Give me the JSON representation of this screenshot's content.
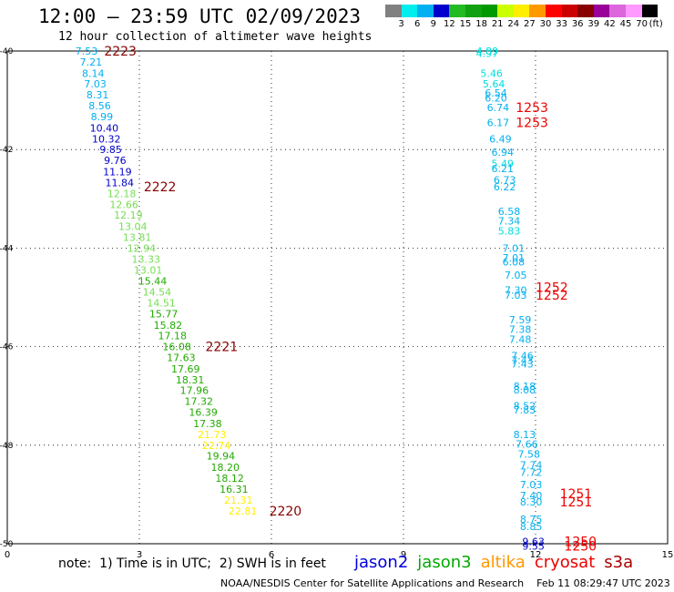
{
  "title": "12:00 – 23:59 UTC 02/09/2023",
  "subtitle": "12 hour collection of altimeter wave heights",
  "color_legend": {
    "unit": "(ft)",
    "labels": [
      "3",
      "6",
      "9",
      "12",
      "15",
      "18",
      "21",
      "24",
      "27",
      "30",
      "33",
      "36",
      "39",
      "42",
      "45",
      "70"
    ],
    "colors": [
      "#808080",
      "#00eeee",
      "#00b0f0",
      "#0000cc",
      "#22bb22",
      "#11a011",
      "#009900",
      "#ccff00",
      "#ffee00",
      "#ff9900",
      "#ff0000",
      "#cc0000",
      "#880000",
      "#990099",
      "#dd66dd",
      "#ff99ff",
      "#000000"
    ]
  },
  "note": "note:  1) Time is in UTC;  2) SWH is in feet",
  "satellites": [
    {
      "name": "jason2",
      "color": "#0000dd"
    },
    {
      "name": "jason3",
      "color": "#00aa00"
    },
    {
      "name": "altika",
      "color": "#ff9900"
    },
    {
      "name": "cryosat",
      "color": "#ee0000"
    },
    {
      "name": "s3a",
      "color": "#aa0000"
    }
  ],
  "footer": "NOAA/NESDIS Center for Satellite Applications and Research    Feb 11 08:29:47 UTC 2023",
  "chart_data": {
    "type": "scatter",
    "xlabel": "",
    "ylabel": "",
    "x_ticks": [
      "0",
      "3",
      "6",
      "9",
      "12",
      "15"
    ],
    "y_ticks": [
      "-40",
      "-42",
      "-44",
      "-46",
      "-48",
      "-50"
    ],
    "xlim": [
      0,
      15
    ],
    "ylim": [
      -50,
      -40
    ],
    "grid": true,
    "value_labels": [
      {
        "x": 1.8,
        "y": -40.0,
        "text": "7.53",
        "color": "#00b0f0"
      },
      {
        "x": 1.9,
        "y": -40.22,
        "text": "7.21",
        "color": "#00b0f0"
      },
      {
        "x": 1.95,
        "y": -40.45,
        "text": "8.14",
        "color": "#00b0f0"
      },
      {
        "x": 2.0,
        "y": -40.67,
        "text": "7.03",
        "color": "#00b0f0"
      },
      {
        "x": 2.05,
        "y": -40.89,
        "text": "8.31",
        "color": "#00b0f0"
      },
      {
        "x": 2.1,
        "y": -41.11,
        "text": "8.56",
        "color": "#00b0f0"
      },
      {
        "x": 2.15,
        "y": -41.33,
        "text": "8.99",
        "color": "#00b0f0"
      },
      {
        "x": 2.2,
        "y": -41.56,
        "text": "10.40",
        "color": "#0000cc"
      },
      {
        "x": 2.25,
        "y": -41.78,
        "text": "10.32",
        "color": "#0000cc"
      },
      {
        "x": 2.35,
        "y": -42.0,
        "text": "9.85",
        "color": "#0000cc"
      },
      {
        "x": 2.45,
        "y": -42.22,
        "text": "9.76",
        "color": "#0000cc"
      },
      {
        "x": 2.5,
        "y": -42.45,
        "text": "11.19",
        "color": "#0000cc"
      },
      {
        "x": 2.55,
        "y": -42.67,
        "text": "11.84",
        "color": "#0000cc"
      },
      {
        "x": 2.6,
        "y": -42.89,
        "text": "12.18",
        "color": "#77dd55"
      },
      {
        "x": 2.65,
        "y": -43.11,
        "text": "12.66",
        "color": "#77dd55"
      },
      {
        "x": 2.75,
        "y": -43.33,
        "text": "12.19",
        "color": "#77dd55"
      },
      {
        "x": 2.85,
        "y": -43.56,
        "text": "13.04",
        "color": "#77dd55"
      },
      {
        "x": 2.95,
        "y": -43.78,
        "text": "13.81",
        "color": "#77dd55"
      },
      {
        "x": 3.05,
        "y": -44.0,
        "text": "12.94",
        "color": "#77dd55"
      },
      {
        "x": 3.15,
        "y": -44.22,
        "text": "13.33",
        "color": "#77dd55"
      },
      {
        "x": 3.2,
        "y": -44.45,
        "text": "13.01",
        "color": "#77dd55"
      },
      {
        "x": 3.3,
        "y": -44.67,
        "text": "15.44",
        "color": "#22aa00"
      },
      {
        "x": 3.4,
        "y": -44.89,
        "text": "14.54",
        "color": "#77dd55"
      },
      {
        "x": 3.5,
        "y": -45.11,
        "text": "14.51",
        "color": "#77dd55"
      },
      {
        "x": 3.55,
        "y": -45.33,
        "text": "15.77",
        "color": "#22aa00"
      },
      {
        "x": 3.65,
        "y": -45.56,
        "text": "15.82",
        "color": "#22aa00"
      },
      {
        "x": 3.75,
        "y": -45.78,
        "text": "17.18",
        "color": "#22aa00"
      },
      {
        "x": 3.85,
        "y": -46.0,
        "text": "16.08",
        "color": "#22aa00"
      },
      {
        "x": 3.95,
        "y": -46.22,
        "text": "17.63",
        "color": "#22aa00"
      },
      {
        "x": 4.05,
        "y": -46.45,
        "text": "17.69",
        "color": "#22aa00"
      },
      {
        "x": 4.15,
        "y": -46.67,
        "text": "18.31",
        "color": "#22aa00"
      },
      {
        "x": 4.25,
        "y": -46.89,
        "text": "17.96",
        "color": "#22aa00"
      },
      {
        "x": 4.35,
        "y": -47.11,
        "text": "17.32",
        "color": "#22aa00"
      },
      {
        "x": 4.45,
        "y": -47.33,
        "text": "16.39",
        "color": "#22aa00"
      },
      {
        "x": 4.55,
        "y": -47.56,
        "text": "17.38",
        "color": "#22aa00"
      },
      {
        "x": 4.65,
        "y": -47.78,
        "text": "21.73",
        "color": "#ffee00"
      },
      {
        "x": 4.75,
        "y": -48.0,
        "text": "22.74",
        "color": "#ffee00"
      },
      {
        "x": 4.85,
        "y": -48.22,
        "text": "19.94",
        "color": "#22aa00"
      },
      {
        "x": 4.95,
        "y": -48.45,
        "text": "18.20",
        "color": "#22aa00"
      },
      {
        "x": 5.05,
        "y": -48.67,
        "text": "18.12",
        "color": "#22aa00"
      },
      {
        "x": 5.15,
        "y": -48.89,
        "text": "16.31",
        "color": "#22aa00"
      },
      {
        "x": 5.25,
        "y": -49.11,
        "text": "21.31",
        "color": "#ffee00"
      },
      {
        "x": 5.35,
        "y": -49.33,
        "text": "22.81",
        "color": "#ffee00"
      },
      {
        "x": 10.9,
        "y": -40.0,
        "text": "4.89",
        "color": "#00dddd"
      },
      {
        "x": 10.9,
        "y": -40.05,
        "text": "4.97",
        "color": "#00dddd"
      },
      {
        "x": 11.0,
        "y": -40.45,
        "text": "5.46",
        "color": "#00dddd"
      },
      {
        "x": 11.05,
        "y": -40.67,
        "text": "5.64",
        "color": "#00dddd"
      },
      {
        "x": 11.1,
        "y": -40.85,
        "text": "6.54",
        "color": "#00b0f0"
      },
      {
        "x": 11.1,
        "y": -40.95,
        "text": "6.20",
        "color": "#00b0f0"
      },
      {
        "x": 11.15,
        "y": -41.15,
        "text": "6.74",
        "color": "#00b0f0"
      },
      {
        "x": 11.15,
        "y": -41.45,
        "text": "6.17",
        "color": "#00b0f0"
      },
      {
        "x": 11.2,
        "y": -41.78,
        "text": "6.49",
        "color": "#00b0f0"
      },
      {
        "x": 11.25,
        "y": -42.05,
        "text": "6.94",
        "color": "#00b0f0"
      },
      {
        "x": 11.25,
        "y": -42.28,
        "text": "5.49",
        "color": "#00dddd"
      },
      {
        "x": 11.25,
        "y": -42.38,
        "text": "6.21",
        "color": "#00b0f0"
      },
      {
        "x": 11.3,
        "y": -42.62,
        "text": "6.73",
        "color": "#00b0f0"
      },
      {
        "x": 11.3,
        "y": -42.75,
        "text": "6.22",
        "color": "#00b0f0"
      },
      {
        "x": 11.4,
        "y": -43.25,
        "text": "6.58",
        "color": "#00b0f0"
      },
      {
        "x": 11.4,
        "y": -43.45,
        "text": "7.34",
        "color": "#00b0f0"
      },
      {
        "x": 11.4,
        "y": -43.65,
        "text": "5.83",
        "color": "#00dddd"
      },
      {
        "x": 11.5,
        "y": -44.0,
        "text": "7.01",
        "color": "#00b0f0"
      },
      {
        "x": 11.5,
        "y": -44.2,
        "text": "7.01",
        "color": "#00b0f0"
      },
      {
        "x": 11.5,
        "y": -44.28,
        "text": "6.08",
        "color": "#00b0f0"
      },
      {
        "x": 11.55,
        "y": -44.55,
        "text": "7.05",
        "color": "#00b0f0"
      },
      {
        "x": 11.55,
        "y": -44.85,
        "text": "7.30",
        "color": "#00b0f0"
      },
      {
        "x": 11.55,
        "y": -44.95,
        "text": "7.03",
        "color": "#00b0f0"
      },
      {
        "x": 11.65,
        "y": -45.45,
        "text": "7.59",
        "color": "#00b0f0"
      },
      {
        "x": 11.65,
        "y": -45.65,
        "text": "7.38",
        "color": "#00b0f0"
      },
      {
        "x": 11.65,
        "y": -45.85,
        "text": "7.48",
        "color": "#00b0f0"
      },
      {
        "x": 11.7,
        "y": -46.18,
        "text": "7.46",
        "color": "#00b0f0"
      },
      {
        "x": 11.7,
        "y": -46.28,
        "text": "7.43",
        "color": "#00b0f0"
      },
      {
        "x": 11.7,
        "y": -46.35,
        "text": "7.43",
        "color": "#00b0f0"
      },
      {
        "x": 11.75,
        "y": -46.8,
        "text": "8.18",
        "color": "#00b0f0"
      },
      {
        "x": 11.75,
        "y": -46.88,
        "text": "8.08",
        "color": "#00b0f0"
      },
      {
        "x": 11.75,
        "y": -47.2,
        "text": "8.52",
        "color": "#00b0f0"
      },
      {
        "x": 11.75,
        "y": -47.28,
        "text": "7.83",
        "color": "#00b0f0"
      },
      {
        "x": 11.75,
        "y": -47.78,
        "text": "8.13",
        "color": "#00b0f0"
      },
      {
        "x": 11.8,
        "y": -47.98,
        "text": "7.66",
        "color": "#00b0f0"
      },
      {
        "x": 11.85,
        "y": -48.18,
        "text": "7.58",
        "color": "#00b0f0"
      },
      {
        "x": 11.9,
        "y": -48.4,
        "text": "7.74",
        "color": "#00b0f0"
      },
      {
        "x": 11.9,
        "y": -48.55,
        "text": "7.72",
        "color": "#00b0f0"
      },
      {
        "x": 11.9,
        "y": -48.8,
        "text": "7.03",
        "color": "#00b0f0"
      },
      {
        "x": 11.9,
        "y": -49.02,
        "text": "7.40",
        "color": "#00b0f0"
      },
      {
        "x": 11.9,
        "y": -49.15,
        "text": "8.30",
        "color": "#00b0f0"
      },
      {
        "x": 11.9,
        "y": -49.5,
        "text": "8.75",
        "color": "#00b0f0"
      },
      {
        "x": 11.9,
        "y": -49.65,
        "text": "8.85",
        "color": "#00b0f0"
      },
      {
        "x": 11.95,
        "y": -49.95,
        "text": "9.63",
        "color": "#0000cc"
      },
      {
        "x": 11.95,
        "y": -50.05,
        "text": "9.55",
        "color": "#0000cc"
      }
    ],
    "pass_labels": [
      {
        "x": 2.2,
        "y": -40.0,
        "text": "2223",
        "color": "#880000"
      },
      {
        "x": 3.1,
        "y": -42.75,
        "text": "2222",
        "color": "#880000"
      },
      {
        "x": 4.5,
        "y": -46.0,
        "text": "2221",
        "color": "#880000"
      },
      {
        "x": 5.95,
        "y": -49.33,
        "text": "2220",
        "color": "#880000"
      },
      {
        "x": 11.55,
        "y": -41.15,
        "text": "1253",
        "color": "#ee0000"
      },
      {
        "x": 11.55,
        "y": -41.45,
        "text": "1253",
        "color": "#ee0000"
      },
      {
        "x": 12.0,
        "y": -44.8,
        "text": "1252",
        "color": "#ee0000"
      },
      {
        "x": 12.0,
        "y": -44.95,
        "text": "1252",
        "color": "#ee0000"
      },
      {
        "x": 12.55,
        "y": -48.98,
        "text": "1251",
        "color": "#ee0000"
      },
      {
        "x": 12.55,
        "y": -49.15,
        "text": "1251",
        "color": "#ee0000"
      },
      {
        "x": 12.65,
        "y": -49.95,
        "text": "1250",
        "color": "#ee0000"
      },
      {
        "x": 12.65,
        "y": -50.05,
        "text": "1250",
        "color": "#ee0000"
      }
    ]
  }
}
